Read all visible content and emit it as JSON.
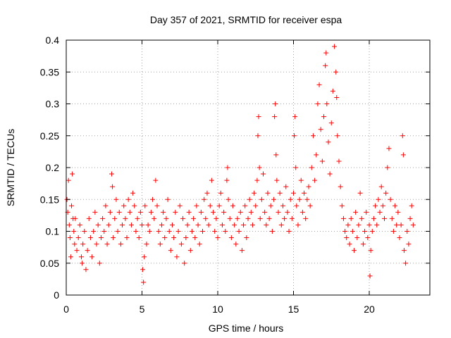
{
  "chart_data": {
    "type": "scatter",
    "title": "Day 357 of 2021, SRMTID for receiver espa",
    "xlabel": "GPS time / hours",
    "ylabel": "SRMTID / TECUs",
    "xlim": [
      0,
      24
    ],
    "ylim": [
      0,
      0.4
    ],
    "x_ticks": [
      0,
      5,
      10,
      15,
      20
    ],
    "x_tick_labels": [
      "0",
      "5",
      "10",
      "15",
      "20"
    ],
    "y_ticks": [
      0,
      0.05,
      0.1,
      0.15,
      0.2,
      0.25,
      0.3,
      0.35,
      0.4
    ],
    "y_tick_labels": [
      "0",
      "0.05",
      "0.1",
      "0.15",
      "0.2",
      "0.25",
      "0.3",
      "0.35",
      "0.4"
    ],
    "grid": true,
    "marker": "+",
    "color": "#ff0000",
    "x_range_data": [
      0,
      22.9
    ],
    "series": [
      {
        "name": "SRMTID",
        "points": [
          [
            0.05,
            0.15
          ],
          [
            0.1,
            0.13
          ],
          [
            0.15,
            0.18
          ],
          [
            0.2,
            0.11
          ],
          [
            0.25,
            0.09
          ],
          [
            0.3,
            0.06
          ],
          [
            0.35,
            0.14
          ],
          [
            0.4,
            0.19
          ],
          [
            0.45,
            0.12
          ],
          [
            0.5,
            0.1
          ],
          [
            0.55,
            0.08
          ],
          [
            0.6,
            0.12
          ],
          [
            0.7,
            0.07
          ],
          [
            0.8,
            0.09
          ],
          [
            0.9,
            0.11
          ],
          [
            1.0,
            0.06
          ],
          [
            1.05,
            0.05
          ],
          [
            1.1,
            0.08
          ],
          [
            1.2,
            0.1
          ],
          [
            1.3,
            0.04
          ],
          [
            1.4,
            0.07
          ],
          [
            1.5,
            0.12
          ],
          [
            1.6,
            0.09
          ],
          [
            1.7,
            0.06
          ],
          [
            1.8,
            0.1
          ],
          [
            1.9,
            0.13
          ],
          [
            2.0,
            0.08
          ],
          [
            2.1,
            0.11
          ],
          [
            2.2,
            0.05
          ],
          [
            2.3,
            0.09
          ],
          [
            2.4,
            0.12
          ],
          [
            2.5,
            0.1
          ],
          [
            2.6,
            0.14
          ],
          [
            2.7,
            0.08
          ],
          [
            2.8,
            0.11
          ],
          [
            2.9,
            0.13
          ],
          [
            3.0,
            0.19
          ],
          [
            3.05,
            0.17
          ],
          [
            3.1,
            0.09
          ],
          [
            3.2,
            0.12
          ],
          [
            3.3,
            0.15
          ],
          [
            3.4,
            0.1
          ],
          [
            3.5,
            0.13
          ],
          [
            3.6,
            0.08
          ],
          [
            3.7,
            0.11
          ],
          [
            3.8,
            0.14
          ],
          [
            3.9,
            0.12
          ],
          [
            4.0,
            0.09
          ],
          [
            4.1,
            0.15
          ],
          [
            4.2,
            0.13
          ],
          [
            4.3,
            0.11
          ],
          [
            4.4,
            0.16
          ],
          [
            4.5,
            0.14
          ],
          [
            4.6,
            0.1
          ],
          [
            4.7,
            0.12
          ],
          [
            4.8,
            0.09
          ],
          [
            4.9,
            0.13
          ],
          [
            5.0,
            0.11
          ],
          [
            5.05,
            0.04
          ],
          [
            5.1,
            0.02
          ],
          [
            5.15,
            0.06
          ],
          [
            5.2,
            0.14
          ],
          [
            5.3,
            0.08
          ],
          [
            5.4,
            0.11
          ],
          [
            5.5,
            0.1
          ],
          [
            5.6,
            0.13
          ],
          [
            5.7,
            0.15
          ],
          [
            5.8,
            0.12
          ],
          [
            5.9,
            0.18
          ],
          [
            6.0,
            0.14
          ],
          [
            6.1,
            0.1
          ],
          [
            6.2,
            0.08
          ],
          [
            6.3,
            0.11
          ],
          [
            6.4,
            0.13
          ],
          [
            6.5,
            0.09
          ],
          [
            6.6,
            0.12
          ],
          [
            6.7,
            0.15
          ],
          [
            6.8,
            0.1
          ],
          [
            6.9,
            0.07
          ],
          [
            7.0,
            0.11
          ],
          [
            7.1,
            0.09
          ],
          [
            7.2,
            0.13
          ],
          [
            7.3,
            0.06
          ],
          [
            7.4,
            0.1
          ],
          [
            7.5,
            0.14
          ],
          [
            7.6,
            0.08
          ],
          [
            7.7,
            0.12
          ],
          [
            7.8,
            0.05
          ],
          [
            7.9,
            0.09
          ],
          [
            8.0,
            0.11
          ],
          [
            8.1,
            0.13
          ],
          [
            8.2,
            0.07
          ],
          [
            8.3,
            0.1
          ],
          [
            8.4,
            0.12
          ],
          [
            8.5,
            0.09
          ],
          [
            8.6,
            0.14
          ],
          [
            8.7,
            0.11
          ],
          [
            8.8,
            0.08
          ],
          [
            8.9,
            0.13
          ],
          [
            9.0,
            0.1
          ],
          [
            9.1,
            0.15
          ],
          [
            9.2,
            0.12
          ],
          [
            9.3,
            0.16
          ],
          [
            9.4,
            0.11
          ],
          [
            9.5,
            0.14
          ],
          [
            9.6,
            0.18
          ],
          [
            9.7,
            0.13
          ],
          [
            9.8,
            0.1
          ],
          [
            9.9,
            0.12
          ],
          [
            10.0,
            0.09
          ],
          [
            10.1,
            0.14
          ],
          [
            10.2,
            0.16
          ],
          [
            10.3,
            0.11
          ],
          [
            10.4,
            0.13
          ],
          [
            10.5,
            0.1
          ],
          [
            10.6,
            0.18
          ],
          [
            10.65,
            0.2
          ],
          [
            10.7,
            0.15
          ],
          [
            10.8,
            0.12
          ],
          [
            10.9,
            0.09
          ],
          [
            11.0,
            0.14
          ],
          [
            11.1,
            0.11
          ],
          [
            11.2,
            0.08
          ],
          [
            11.3,
            0.12
          ],
          [
            11.4,
            0.1
          ],
          [
            11.5,
            0.13
          ],
          [
            11.6,
            0.07
          ],
          [
            11.7,
            0.11
          ],
          [
            11.8,
            0.14
          ],
          [
            11.9,
            0.09
          ],
          [
            12.0,
            0.12
          ],
          [
            12.1,
            0.15
          ],
          [
            12.2,
            0.13
          ],
          [
            12.3,
            0.11
          ],
          [
            12.4,
            0.16
          ],
          [
            12.5,
            0.14
          ],
          [
            12.6,
            0.18
          ],
          [
            12.65,
            0.25
          ],
          [
            12.7,
            0.28
          ],
          [
            12.75,
            0.2
          ],
          [
            12.8,
            0.12
          ],
          [
            12.9,
            0.15
          ],
          [
            13.0,
            0.19
          ],
          [
            13.1,
            0.13
          ],
          [
            13.2,
            0.11
          ],
          [
            13.3,
            0.16
          ],
          [
            13.4,
            0.12
          ],
          [
            13.5,
            0.14
          ],
          [
            13.6,
            0.1
          ],
          [
            13.7,
            0.15
          ],
          [
            13.75,
            0.28
          ],
          [
            13.8,
            0.3
          ],
          [
            13.85,
            0.22
          ],
          [
            13.9,
            0.18
          ],
          [
            14.0,
            0.13
          ],
          [
            14.1,
            0.16
          ],
          [
            14.2,
            0.11
          ],
          [
            14.3,
            0.14
          ],
          [
            14.4,
            0.12
          ],
          [
            14.5,
            0.17
          ],
          [
            14.6,
            0.13
          ],
          [
            14.7,
            0.1
          ],
          [
            14.8,
            0.15
          ],
          [
            14.9,
            0.12
          ],
          [
            15.0,
            0.16
          ],
          [
            15.05,
            0.25
          ],
          [
            15.1,
            0.28
          ],
          [
            15.15,
            0.2
          ],
          [
            15.2,
            0.14
          ],
          [
            15.3,
            0.11
          ],
          [
            15.4,
            0.15
          ],
          [
            15.5,
            0.18
          ],
          [
            15.6,
            0.13
          ],
          [
            15.7,
            0.16
          ],
          [
            15.8,
            0.12
          ],
          [
            15.9,
            0.15
          ],
          [
            16.0,
            0.17
          ],
          [
            16.1,
            0.14
          ],
          [
            16.2,
            0.2
          ],
          [
            16.3,
            0.25
          ],
          [
            16.4,
            0.18
          ],
          [
            16.5,
            0.22
          ],
          [
            16.6,
            0.3
          ],
          [
            16.7,
            0.33
          ],
          [
            16.8,
            0.26
          ],
          [
            16.9,
            0.21
          ],
          [
            17.0,
            0.28
          ],
          [
            17.1,
            0.36
          ],
          [
            17.15,
            0.38
          ],
          [
            17.2,
            0.3
          ],
          [
            17.3,
            0.24
          ],
          [
            17.4,
            0.19
          ],
          [
            17.5,
            0.27
          ],
          [
            17.6,
            0.32
          ],
          [
            17.7,
            0.39
          ],
          [
            17.8,
            0.35
          ],
          [
            17.85,
            0.31
          ],
          [
            17.9,
            0.25
          ],
          [
            18.0,
            0.21
          ],
          [
            18.1,
            0.17
          ],
          [
            18.2,
            0.14
          ],
          [
            18.3,
            0.12
          ],
          [
            18.4,
            0.1
          ],
          [
            18.5,
            0.09
          ],
          [
            18.6,
            0.11
          ],
          [
            18.7,
            0.08
          ],
          [
            18.8,
            0.12
          ],
          [
            18.9,
            0.1
          ],
          [
            19.0,
            0.07
          ],
          [
            19.1,
            0.13
          ],
          [
            19.2,
            0.09
          ],
          [
            19.3,
            0.11
          ],
          [
            19.4,
            0.16
          ],
          [
            19.5,
            0.12
          ],
          [
            19.6,
            0.08
          ],
          [
            19.7,
            0.1
          ],
          [
            19.8,
            0.13
          ],
          [
            19.9,
            0.09
          ],
          [
            20.0,
            0.11
          ],
          [
            20.05,
            0.03
          ],
          [
            20.1,
            0.07
          ],
          [
            20.2,
            0.1
          ],
          [
            20.3,
            0.12
          ],
          [
            20.4,
            0.14
          ],
          [
            20.5,
            0.11
          ],
          [
            20.6,
            0.15
          ],
          [
            20.7,
            0.13
          ],
          [
            20.8,
            0.17
          ],
          [
            20.9,
            0.14
          ],
          [
            21.0,
            0.12
          ],
          [
            21.1,
            0.16
          ],
          [
            21.2,
            0.2
          ],
          [
            21.3,
            0.23
          ],
          [
            21.4,
            0.15
          ],
          [
            21.5,
            0.12
          ],
          [
            21.6,
            0.1
          ],
          [
            21.7,
            0.14
          ],
          [
            21.8,
            0.11
          ],
          [
            21.9,
            0.13
          ],
          [
            22.0,
            0.09
          ],
          [
            22.1,
            0.11
          ],
          [
            22.2,
            0.25
          ],
          [
            22.25,
            0.22
          ],
          [
            22.3,
            0.07
          ],
          [
            22.4,
            0.05
          ],
          [
            22.5,
            0.1
          ],
          [
            22.6,
            0.08
          ],
          [
            22.7,
            0.12
          ],
          [
            22.8,
            0.14
          ],
          [
            22.9,
            0.11
          ]
        ]
      }
    ]
  }
}
